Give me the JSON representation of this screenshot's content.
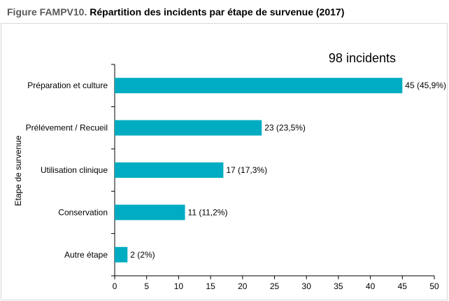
{
  "figure": {
    "prefix": "Figure FAMPV10.",
    "title": "Répartition des incidents par étape de survenue (2017)"
  },
  "chart_data": {
    "type": "bar",
    "orientation": "horizontal",
    "annotation": "98 incidents",
    "ylabel": "Etape de survenue",
    "xlabel": "",
    "categories": [
      "Préparation et culture",
      "Prélévement / Recueil",
      "Utilisation clinique",
      "Conservation",
      "Autre étape"
    ],
    "values": [
      45,
      23,
      17,
      11,
      2
    ],
    "data_labels": [
      "45 (45,9%)",
      "23 (23,5%)",
      "17 (17,3%)",
      "11 (11,2%)",
      "2 (2%)"
    ],
    "xlim": [
      0,
      50
    ],
    "xticks": [
      0,
      5,
      10,
      15,
      20,
      25,
      30,
      35,
      40,
      45,
      50
    ],
    "bar_color": "#00acc1",
    "grid": false,
    "legend": "none"
  }
}
